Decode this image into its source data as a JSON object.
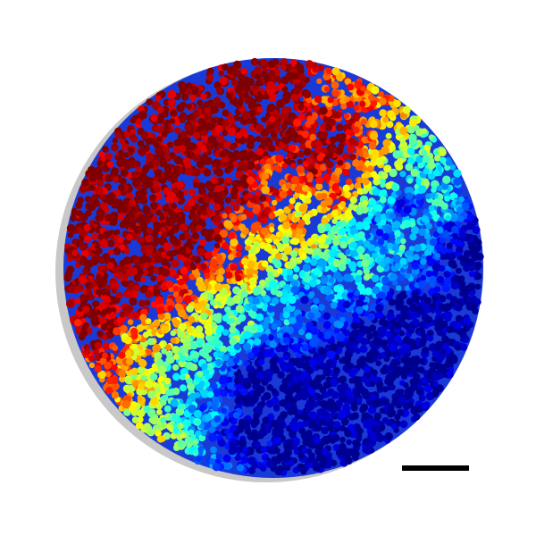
{
  "image": {
    "background": "#ffffff",
    "colormap": "jet",
    "colormap_stops": [
      "#00008f",
      "#0000ff",
      "#0080ff",
      "#00ffff",
      "#80ff80",
      "#ffff00",
      "#ff8000",
      "#ff0000",
      "#800000"
    ],
    "scale_bar_color": "#000000",
    "spot_outline_color": "#c8c8c8"
  }
}
